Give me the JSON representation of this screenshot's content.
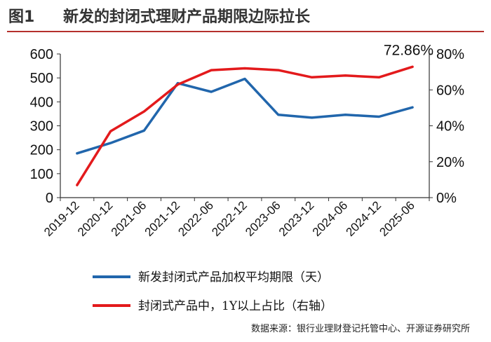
{
  "header": {
    "figure_no": "图1",
    "title": "新发的封闭式理财产品期限边际拉长"
  },
  "source_note": "数据来源：银行业理财登记托管中心、开源证券研究所",
  "chart_data": {
    "type": "line",
    "categories": [
      "2019-12",
      "2020-12",
      "2021-06",
      "2021-12",
      "2022-06",
      "2022-12",
      "2023-06",
      "2023-12",
      "2024-06",
      "2024-12",
      "2025-06"
    ],
    "series": [
      {
        "name": "新发封闭式产品加权平均期限（天）",
        "axis": "left",
        "color": "#2166ac",
        "values": [
          185,
          228,
          280,
          478,
          442,
          496,
          346,
          334,
          346,
          338,
          377
        ]
      },
      {
        "name": "封闭式产品中，1Y以上占比（右轴）",
        "axis": "right",
        "color": "#e31a1c",
        "values": [
          0.07,
          0.37,
          0.48,
          0.63,
          0.71,
          0.72,
          0.71,
          0.67,
          0.68,
          0.67,
          0.7286
        ]
      }
    ],
    "y_left": {
      "range": [
        0,
        600
      ],
      "ticks": [
        "0",
        "100",
        "200",
        "300",
        "400",
        "500",
        "600"
      ]
    },
    "y_right": {
      "range": [
        0,
        0.8
      ],
      "ticks": [
        "0%",
        "20%",
        "40%",
        "60%",
        "80%"
      ]
    },
    "annotation": {
      "text": "72.86%",
      "series": 1,
      "index": 10
    },
    "grid": false,
    "legend_position": "bottom"
  }
}
